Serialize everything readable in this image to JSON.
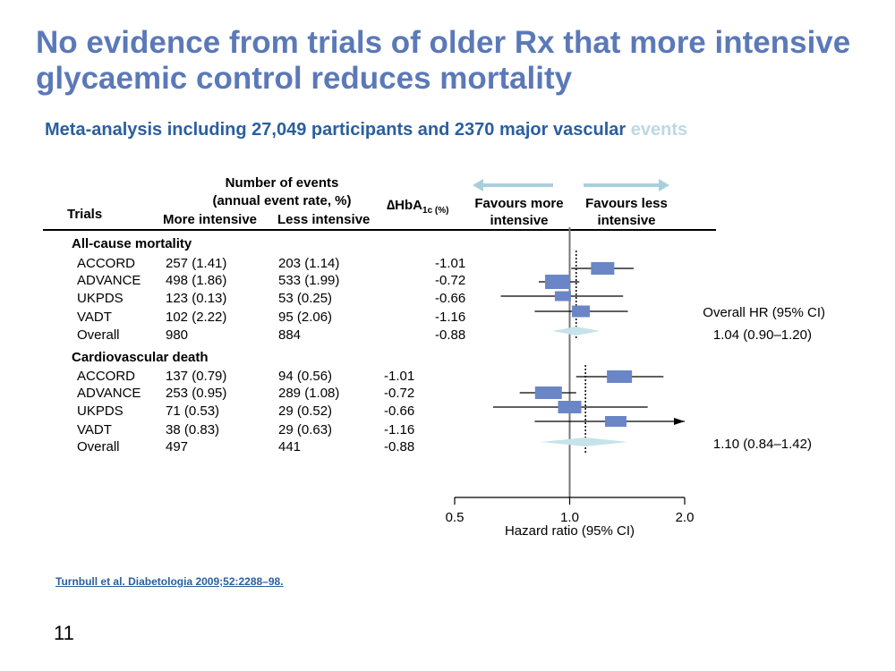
{
  "slide": {
    "title": "No evidence from trials of older Rx that more intensive glycaemic control reduces mortality",
    "subtitle_main": "Meta-analysis including 27,049 participants and 2370 major vascular",
    "subtitle_faded": "events",
    "citation": "Turnbull et al. Diabetologia 2009;52:2288–98.",
    "page_number": "11"
  },
  "table_header": {
    "trials": "Trials",
    "events_line1": "Number of events",
    "events_line2": "(annual event rate, %)",
    "more_intensive": "More intensive",
    "less_intensive": "Less intensive",
    "hba1c_main": "∆HbA",
    "hba1c_sub": "1c (%)",
    "favours_more": "Favours more intensive",
    "favours_less": "Favours less intensive"
  },
  "sections": [
    {
      "name": "All-cause mortality",
      "rows": [
        {
          "trial": "ACCORD",
          "more": "257 (1.41)",
          "less": "203 (1.14)",
          "dhba1c": "-1.01"
        },
        {
          "trial": "ADVANCE",
          "more": "498 (1.86)",
          "less": "533 (1.99)",
          "dhba1c": "-0.72"
        },
        {
          "trial": "UKPDS",
          "more": "123 (0.13)",
          "less": "53 (0.25)",
          "dhba1c": "-0.66"
        },
        {
          "trial": "VADT",
          "more": "102 (2.22)",
          "less": "95 (2.06)",
          "dhba1c": "-1.16"
        },
        {
          "trial": "Overall",
          "more": "980",
          "less": "884",
          "dhba1c": "-0.88"
        }
      ],
      "overall_label": "Overall HR (95% CI)",
      "overall_hr": "1.04 (0.90–1.20)"
    },
    {
      "name": "Cardiovascular death",
      "rows": [
        {
          "trial": "ACCORD",
          "more": "137 (0.79)",
          "less": "94 (0.56)",
          "dhba1c": "-1.01"
        },
        {
          "trial": "ADVANCE",
          "more": "253 (0.95)",
          "less": "289 (1.08)",
          "dhba1c": "-0.72"
        },
        {
          "trial": "UKPDS",
          "more": "71 (0.53)",
          "less": "29 (0.52)",
          "dhba1c": "-0.66"
        },
        {
          "trial": "VADT",
          "more": "38 (0.83)",
          "less": "29 (0.63)",
          "dhba1c": "-1.16"
        },
        {
          "trial": "Overall",
          "more": "497",
          "less": "441",
          "dhba1c": "-0.88"
        }
      ],
      "overall_hr": "1.10 (0.84–1.42)"
    }
  ],
  "chart_data": {
    "type": "forest",
    "x_scale": "log",
    "xlim": [
      0.5,
      2.0
    ],
    "reference_line": 1.0,
    "xticks": [
      "0.5",
      "1.0",
      "2.0"
    ],
    "xlabel": "Hazard ratio (95% CI)",
    "square_color": "#6a86c6",
    "diamond_color": "#c6e3ea",
    "arrow_color": "#a9cfdc",
    "series": [
      {
        "name": "All-cause mortality",
        "studies": [
          {
            "trial": "ACCORD",
            "hr": 1.22,
            "lower": 1.01,
            "upper": 1.47
          },
          {
            "trial": "ADVANCE",
            "hr": 0.93,
            "lower": 0.83,
            "upper": 1.06
          },
          {
            "trial": "UKPDS",
            "hr": 0.96,
            "lower": 0.66,
            "upper": 1.38
          },
          {
            "trial": "VADT",
            "hr": 1.07,
            "lower": 0.81,
            "upper": 1.42
          }
        ],
        "overall": {
          "hr": 1.04,
          "lower": 0.9,
          "upper": 1.2
        }
      },
      {
        "name": "Cardiovascular death",
        "studies": [
          {
            "trial": "ACCORD",
            "hr": 1.35,
            "lower": 1.04,
            "upper": 1.76
          },
          {
            "trial": "ADVANCE",
            "hr": 0.88,
            "lower": 0.74,
            "upper": 1.04
          },
          {
            "trial": "UKPDS",
            "hr": 1.0,
            "lower": 0.63,
            "upper": 1.6
          },
          {
            "trial": "VADT",
            "hr": 1.32,
            "lower": 0.81,
            "upper": 2.14
          }
        ],
        "overall": {
          "hr": 1.1,
          "lower": 0.84,
          "upper": 1.42
        }
      }
    ]
  }
}
